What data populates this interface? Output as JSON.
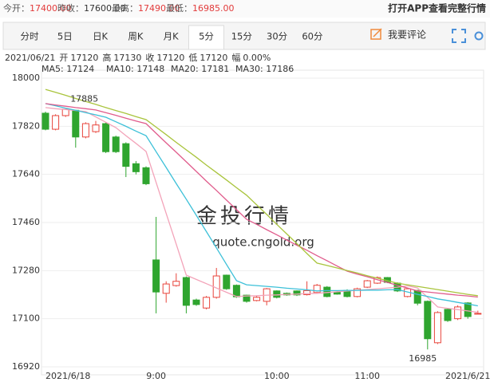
{
  "quote_bar": {
    "items": [
      {
        "label": "今开：",
        "value": "17400.00",
        "color": "#e23b3b"
      },
      {
        "label": "昨收：",
        "value": "17600.00",
        "color": "#333333"
      },
      {
        "label": "最高：",
        "value": "17490.00",
        "color": "#e23b3b"
      },
      {
        "label": "最低：",
        "value": "16985.00",
        "color": "#e23b3b"
      }
    ],
    "app_link": "打开APP查看完整行情"
  },
  "tabs": [
    "分时",
    "5日",
    "日K",
    "周K",
    "月K",
    "5分",
    "15分",
    "30分",
    "60分"
  ],
  "active_tab": 5,
  "comment_button": "我要评论",
  "info": {
    "date": "2021/06/21",
    "fields": [
      {
        "label": "开",
        "value": "17120"
      },
      {
        "label": "高",
        "value": "17130"
      },
      {
        "label": "收",
        "value": "17120"
      },
      {
        "label": "低",
        "value": "17120"
      },
      {
        "label": "幅",
        "value": "0.00%"
      }
    ]
  },
  "watermark": [
    "金投行情",
    "quote.cngold.org"
  ],
  "chart_data": {
    "type": "candlestick",
    "categories": [
      "2021/6/18",
      null,
      null,
      null,
      null,
      null,
      null,
      null,
      null,
      null,
      null,
      "9:00",
      null,
      null,
      null,
      null,
      null,
      null,
      null,
      null,
      null,
      null,
      null,
      "10:00",
      null,
      null,
      null,
      null,
      null,
      null,
      null,
      null,
      "11:00",
      null,
      null,
      null,
      null,
      null,
      null,
      null,
      null,
      null,
      "2021/6/21",
      null
    ],
    "open": [
      17869,
      17809,
      17860,
      17880,
      17780,
      17800,
      17830,
      17780,
      17755,
      17680,
      17665,
      17320,
      17195,
      17224,
      17254,
      17170,
      17140,
      17180,
      17263,
      17225,
      17188,
      17168,
      17165,
      17204,
      17195,
      17204,
      17190,
      17198,
      17218,
      17200,
      17206,
      17183,
      17218,
      17233,
      17254,
      17233,
      17183,
      17206,
      17165,
      17010,
      17135,
      17100,
      17159,
      17120
    ],
    "high": [
      17875,
      17865,
      17885,
      17882,
      17835,
      17840,
      17835,
      17785,
      17760,
      17690,
      17670,
      17481,
      17240,
      17270,
      17258,
      17175,
      17185,
      17290,
      17265,
      17228,
      17190,
      17185,
      17215,
      17206,
      17198,
      17206,
      17240,
      17230,
      17222,
      17203,
      17210,
      17216,
      17245,
      17258,
      17256,
      17236,
      17215,
      17208,
      17168,
      17128,
      17140,
      17150,
      17162,
      17130
    ],
    "low": [
      17805,
      17805,
      17855,
      17740,
      17775,
      17795,
      17720,
      17720,
      17630,
      17640,
      17600,
      17120,
      17160,
      17220,
      17120,
      17148,
      17135,
      17175,
      17208,
      17178,
      17160,
      17165,
      17150,
      17176,
      17186,
      17185,
      17187,
      17195,
      17180,
      17190,
      17180,
      17180,
      17215,
      17230,
      17233,
      17200,
      17180,
      17150,
      16985,
      17005,
      17088,
      17095,
      17100,
      17120
    ],
    "close": [
      17809,
      17860,
      17884,
      17780,
      17830,
      17825,
      17725,
      17725,
      17670,
      17650,
      17605,
      17200,
      17230,
      17240,
      17150,
      17153,
      17180,
      17260,
      17212,
      17182,
      17165,
      17180,
      17212,
      17180,
      17189,
      17189,
      17205,
      17225,
      17183,
      17192,
      17183,
      17212,
      17242,
      17254,
      17236,
      17204,
      17212,
      17158,
      17025,
      17123,
      17093,
      17144,
      17108,
      17120
    ],
    "up_color": "#e8453c",
    "down_color": "#2fa52f",
    "series": [
      {
        "label": "MA5: 17124",
        "color": "#f3a3b9",
        "values": [
          17890,
          17886,
          17883,
          17879,
          17875,
          17855,
          17835,
          17815,
          17785,
          17756,
          17726,
          17610,
          17494,
          17379,
          17263,
          17247,
          17231,
          17215,
          17199,
          17183,
          17185,
          17186,
          17188,
          17189,
          17191,
          17192,
          17194,
          17195,
          17198,
          17201,
          17204,
          17206,
          17209,
          17212,
          17215,
          17218,
          17223,
          17215,
          17180,
          17144,
          17139,
          17134,
          17129,
          17124
        ]
      },
      {
        "label": "MA10: 17148",
        "color": "#3cc0d8",
        "values": [
          17905,
          17897,
          17888,
          17880,
          17871,
          17863,
          17854,
          17837,
          17820,
          17802,
          17785,
          17725,
          17666,
          17606,
          17547,
          17487,
          17426,
          17365,
          17303,
          17242,
          17227,
          17224,
          17221,
          17218,
          17214,
          17211,
          17208,
          17204,
          17205,
          17205,
          17206,
          17206,
          17207,
          17207,
          17208,
          17209,
          17200,
          17191,
          17183,
          17174,
          17168,
          17161,
          17155,
          17148
        ]
      },
      {
        "label": "MA20: 17181",
        "color": "#e05c8c",
        "values": [
          17905,
          17900,
          17895,
          17890,
          17886,
          17881,
          17871,
          17861,
          17850,
          17840,
          17830,
          17794,
          17758,
          17723,
          17687,
          17651,
          17615,
          17580,
          17544,
          17508,
          17472,
          17453,
          17433,
          17414,
          17394,
          17375,
          17356,
          17336,
          17317,
          17297,
          17278,
          17267,
          17257,
          17246,
          17236,
          17225,
          17215,
          17204,
          17200,
          17196,
          17192,
          17188,
          17185,
          17181
        ]
      },
      {
        "label": "MA30: 17186",
        "color": "#a9c43c",
        "values": [
          17958,
          17947,
          17936,
          17924,
          17913,
          17902,
          17890,
          17879,
          17868,
          17856,
          17845,
          17817,
          17789,
          17760,
          17732,
          17704,
          17675,
          17647,
          17619,
          17590,
          17562,
          17526,
          17490,
          17453,
          17417,
          17381,
          17344,
          17308,
          17299,
          17290,
          17280,
          17271,
          17261,
          17252,
          17242,
          17233,
          17227,
          17221,
          17215,
          17209,
          17203,
          17197,
          17191,
          17186
        ]
      }
    ],
    "high_mark": 17885,
    "low_mark": 16985,
    "ylim": [
      16890,
      18030
    ],
    "yticks": [
      18000,
      17820,
      17640,
      17460,
      17280,
      17100,
      16920
    ],
    "grid": true
  }
}
